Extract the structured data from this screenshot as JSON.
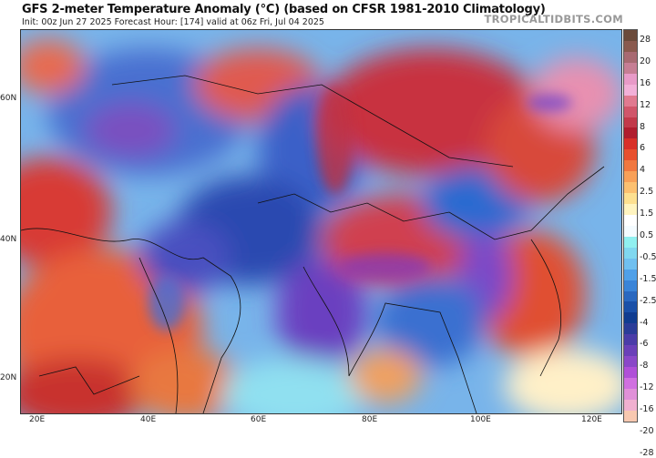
{
  "header": {
    "title": "GFS 2-meter Temperature Anomaly (°C) (based on CFSR 1981-2010 Climatology)",
    "subtitle": "Init: 00z Jun 27 2025   Forecast Hour: [174]   valid at 06z Fri, Jul 04 2025",
    "brand": "TROPICALTIDBITS.COM"
  },
  "map": {
    "lat_labels": [
      "60N",
      "40N",
      "20N"
    ],
    "lon_labels": [
      "20E",
      "40E",
      "60E",
      "80E",
      "100E",
      "120E"
    ]
  },
  "colorbar": {
    "labels": [
      "28",
      "20",
      "16",
      "12",
      "8",
      "6",
      "4",
      "2.5",
      "1.5",
      "0.5",
      "-0.5",
      "-1.5",
      "-2.5",
      "-4",
      "-6",
      "-8",
      "-12",
      "-16",
      "-20",
      "-28"
    ],
    "colors": [
      "#6b4a3a",
      "#8a5a4e",
      "#a86a72",
      "#c67e94",
      "#e89ac8",
      "#f2b0d8",
      "#e07a90",
      "#d0566a",
      "#c23a4a",
      "#b01e2e",
      "#d83028",
      "#e8502e",
      "#f07840",
      "#f8a058",
      "#fcc070",
      "#fde090",
      "#fff4c0",
      "#ffffff",
      "#f4fbff",
      "#90f0f0",
      "#80d8f0",
      "#70c0f0",
      "#50a0e8",
      "#3a84d8",
      "#2a68c0",
      "#1a50a8",
      "#103c90",
      "#2a3c98",
      "#4a3ca8",
      "#6a40b8",
      "#8a48c8",
      "#b050d8",
      "#d070e0",
      "#e090d8",
      "#f0b0d0",
      "#f8c8b0"
    ]
  }
}
